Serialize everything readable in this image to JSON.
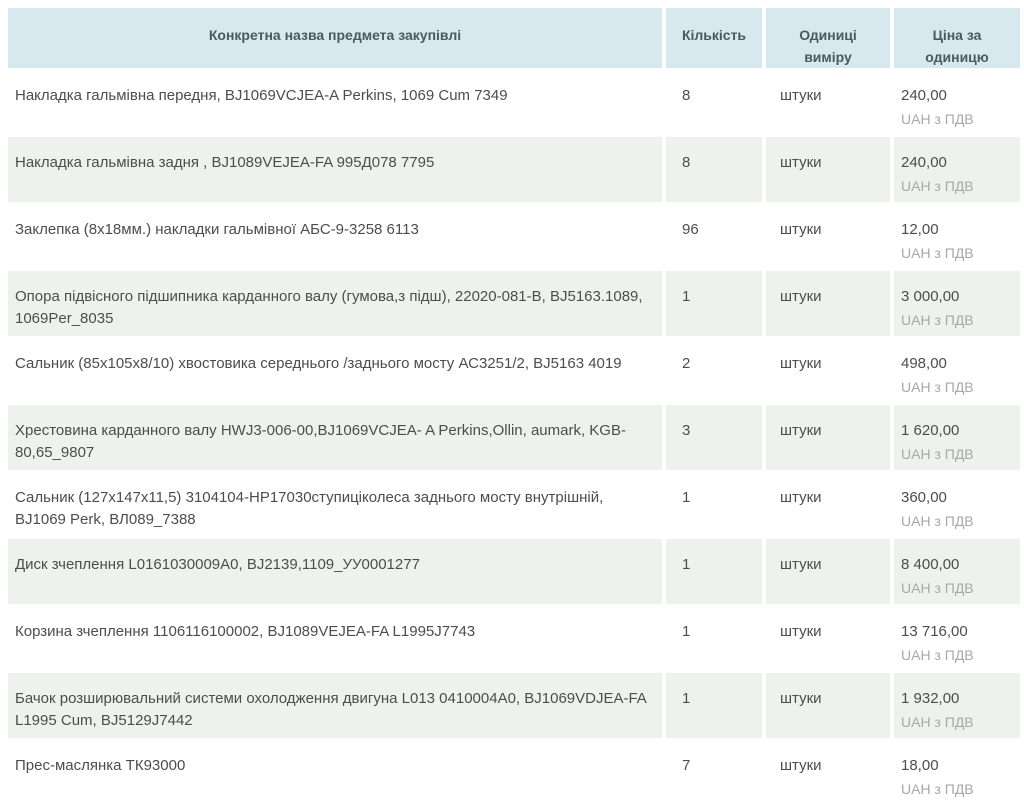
{
  "table": {
    "header": {
      "name": "Конкретна назва предмета закупівлі",
      "quantity": "Кількість",
      "unit": "Одиниці виміру",
      "price": "Ціна за одиницю"
    },
    "rows": [
      {
        "name": "Накладка гальмівна передня, BJ1069VCJEA-A Perkins, 1069 Cum 7349",
        "quantity": "8",
        "unit": "штуки",
        "price": "240,00",
        "vat": "UAH з ПДВ"
      },
      {
        "name": "Накладка гальмівна задня , BJ1089VEJEA-FA 995Д078 7795",
        "quantity": "8",
        "unit": "штуки",
        "price": "240,00",
        "vat": "UAH з ПДВ"
      },
      {
        "name": "Заклепка (8х18мм.) накладки гальмівної АБС-9-3258 6113",
        "quantity": "96",
        "unit": "штуки",
        "price": "12,00",
        "vat": "UAH з ПДВ"
      },
      {
        "name": "Опора підвісного підшипника карданного валу (гумова,з підш), 22020-081-В, BJ5163.1089, 1069Per_8035",
        "quantity": "1",
        "unit": "штуки",
        "price": "3 000,00",
        "vat": "UAH з ПДВ"
      },
      {
        "name": "Сальник (85х105х8/10) хвостовика середнього /заднього мосту АС3251/2, BJ5163 4019",
        "quantity": "2",
        "unit": "штуки",
        "price": "498,00",
        "vat": "UAH з ПДВ"
      },
      {
        "name": "Хрестовина карданного валу HWJ3-006-00,BJ1069VCJEA- A Perkins,Ollin, aumark, KGB-80,65_9807",
        "quantity": "3",
        "unit": "штуки",
        "price": "1 620,00",
        "vat": "UAH з ПДВ"
      },
      {
        "name": "Сальник (127х147х11,5) 3104104-НР17030ступиціколеса заднього мосту внутрішній, BJ1069 Perk, ВЛ089_7388",
        "quantity": "1",
        "unit": "штуки",
        "price": "360,00",
        "vat": "UAH з ПДВ"
      },
      {
        "name": "Диск зчеплення L0161030009A0, BJ2139,1109_УУ0001277",
        "quantity": "1",
        "unit": "штуки",
        "price": "8 400,00",
        "vat": "UAH з ПДВ"
      },
      {
        "name": "Корзина зчеплення 1106116100002, BJ1089VEJEA-FA L1995J7743",
        "quantity": "1",
        "unit": "штуки",
        "price": "13 716,00",
        "vat": "UAH з ПДВ"
      },
      {
        "name": "Бачок розширювальний системи охолодження двигуна L013 0410004A0, BJ1069VDJEA-FA L1995 Cum, BJ5129J7442",
        "quantity": "1",
        "unit": "штуки",
        "price": "1 932,00",
        "vat": "UAH з ПДВ"
      },
      {
        "name": "Прес-маслянка ТК93000",
        "quantity": "7",
        "unit": "штуки",
        "price": "18,00",
        "vat": "UAH з ПДВ"
      }
    ]
  },
  "colors": {
    "header_bg": "#d8e8ef",
    "stripe_bg": "#eef2ed",
    "header_text": "#4b5961",
    "text": "#4d4d4d",
    "muted": "#a5a9a8"
  }
}
